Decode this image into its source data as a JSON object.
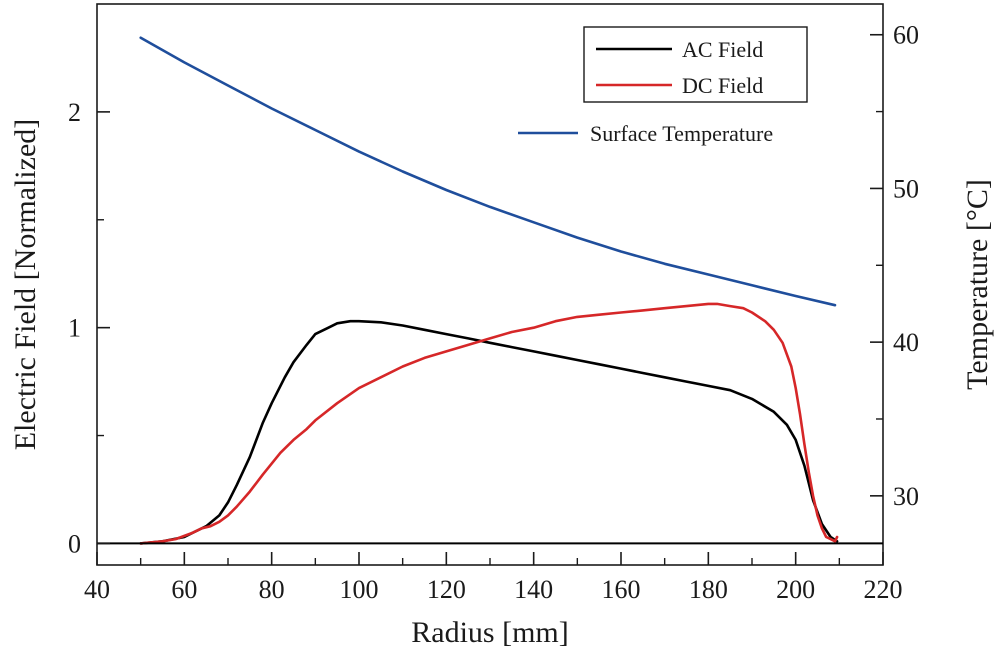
{
  "chart_data": {
    "type": "line",
    "xlabel": "Radius [mm]",
    "ylabel": "Electric Field [Normalized]",
    "y2label": "Temperature [°C]",
    "xlim": [
      40,
      220
    ],
    "ylim": [
      -0.1,
      2.5
    ],
    "y2lim": [
      25.5,
      62
    ],
    "xticks": [
      40,
      60,
      80,
      100,
      120,
      140,
      160,
      180,
      200,
      220
    ],
    "yticks": [
      0,
      1,
      2
    ],
    "y2ticks": [
      30,
      40,
      50,
      60
    ],
    "grid": false,
    "legend": {
      "placement": "top-right",
      "boxed": [
        "AC Field",
        "DC Field"
      ],
      "unboxed": [
        "Surface Temperature"
      ]
    },
    "reference_line_y": 0,
    "series": [
      {
        "name": "AC Field",
        "axis": "left",
        "color": "#000000",
        "x": [
          50,
          55,
          60,
          62,
          65,
          68,
          70,
          72,
          75,
          78,
          80,
          83,
          85,
          88,
          90,
          93,
          95,
          98,
          100,
          105,
          110,
          115,
          120,
          125,
          130,
          135,
          140,
          145,
          150,
          155,
          160,
          165,
          170,
          175,
          180,
          185,
          190,
          195,
          198,
          200,
          202,
          204,
          206,
          208,
          209.5
        ],
        "y": [
          0.0,
          0.01,
          0.03,
          0.05,
          0.08,
          0.13,
          0.19,
          0.27,
          0.4,
          0.56,
          0.65,
          0.77,
          0.84,
          0.92,
          0.97,
          1.0,
          1.02,
          1.03,
          1.03,
          1.025,
          1.01,
          0.99,
          0.97,
          0.95,
          0.93,
          0.91,
          0.89,
          0.87,
          0.85,
          0.83,
          0.81,
          0.79,
          0.77,
          0.75,
          0.73,
          0.71,
          0.67,
          0.61,
          0.55,
          0.48,
          0.36,
          0.2,
          0.09,
          0.03,
          0.01
        ]
      },
      {
        "name": "DC Field",
        "axis": "left",
        "color": "#d62728",
        "x": [
          50,
          55,
          58,
          60,
          62,
          64,
          66,
          68,
          70,
          72,
          75,
          78,
          80,
          82,
          85,
          88,
          90,
          95,
          100,
          105,
          110,
          115,
          120,
          125,
          130,
          135,
          140,
          145,
          150,
          155,
          160,
          165,
          170,
          175,
          180,
          182,
          185,
          188,
          190,
          193,
          195,
          197,
          199,
          200,
          201,
          202,
          203,
          204,
          205,
          206,
          207,
          208,
          209,
          209.5
        ],
        "y": [
          0.0,
          0.01,
          0.02,
          0.035,
          0.05,
          0.07,
          0.08,
          0.1,
          0.13,
          0.17,
          0.24,
          0.32,
          0.37,
          0.42,
          0.48,
          0.53,
          0.57,
          0.65,
          0.72,
          0.77,
          0.82,
          0.86,
          0.89,
          0.92,
          0.95,
          0.98,
          1.0,
          1.03,
          1.05,
          1.06,
          1.07,
          1.08,
          1.09,
          1.1,
          1.11,
          1.11,
          1.1,
          1.09,
          1.07,
          1.03,
          0.99,
          0.93,
          0.82,
          0.72,
          0.6,
          0.46,
          0.33,
          0.22,
          0.13,
          0.07,
          0.03,
          0.02,
          0.01,
          0.03
        ]
      },
      {
        "name": "Surface Temperature",
        "axis": "right",
        "color": "#1f4e9c",
        "x": [
          50,
          60,
          70,
          80,
          90,
          100,
          110,
          120,
          130,
          140,
          150,
          160,
          170,
          180,
          190,
          200,
          209
        ],
        "y": [
          59.8,
          58.2,
          56.7,
          55.2,
          53.8,
          52.4,
          51.1,
          49.9,
          48.8,
          47.8,
          46.8,
          45.9,
          45.1,
          44.4,
          43.7,
          43.0,
          42.4
        ]
      }
    ]
  }
}
